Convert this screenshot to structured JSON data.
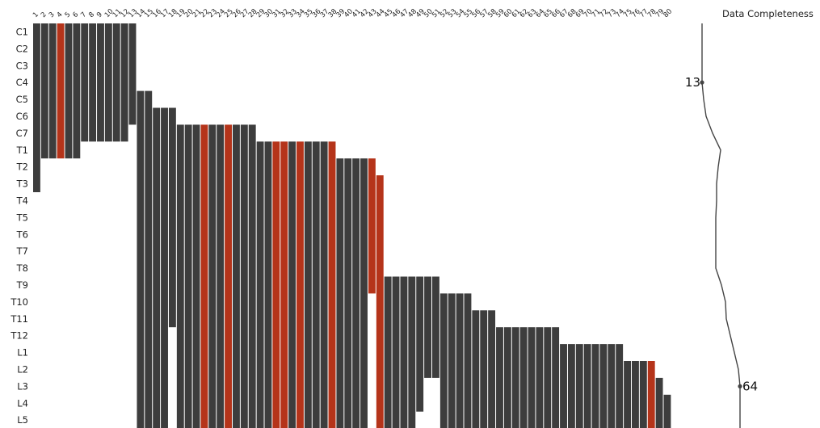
{
  "chart_data": {
    "type": "heatmap",
    "title": "",
    "rows": [
      "C1",
      "C2",
      "C3",
      "C4",
      "C5",
      "C6",
      "C7",
      "T1",
      "T2",
      "T3",
      "T4",
      "T5",
      "T6",
      "T7",
      "T8",
      "T9",
      "T10",
      "T11",
      "T12",
      "L1",
      "L2",
      "L3",
      "L4",
      "L5"
    ],
    "columns": [
      "1",
      "2",
      "3",
      "4",
      "5",
      "6",
      "7",
      "8",
      "9",
      "10",
      "11",
      "12",
      "13",
      "14",
      "15",
      "16",
      "17",
      "18",
      "19",
      "20",
      "21",
      "22",
      "23",
      "24",
      "25",
      "26",
      "27",
      "28",
      "29",
      "30",
      "31",
      "32",
      "33",
      "34",
      "35",
      "36",
      "37",
      "38",
      "39",
      "40",
      "41",
      "42",
      "43",
      "44",
      "45",
      "46",
      "47",
      "48",
      "49",
      "50",
      "51",
      "52",
      "53",
      "54",
      "55",
      "56",
      "57",
      "58",
      "59",
      "60",
      "61",
      "62",
      "63",
      "64",
      "65",
      "66",
      "67",
      "68",
      "69",
      "70",
      "71",
      "72",
      "73",
      "74",
      "75",
      "76",
      "77",
      "78",
      "79",
      "80"
    ],
    "spans": [
      [
        0,
        10
      ],
      [
        0,
        8
      ],
      [
        0,
        8
      ],
      [
        0,
        8
      ],
      [
        0,
        8
      ],
      [
        0,
        8
      ],
      [
        0,
        7
      ],
      [
        0,
        7
      ],
      [
        0,
        7
      ],
      [
        0,
        7
      ],
      [
        0,
        7
      ],
      [
        0,
        7
      ],
      [
        0,
        6
      ],
      [
        4,
        24
      ],
      [
        4,
        24
      ],
      [
        5,
        24
      ],
      [
        5,
        24
      ],
      [
        5,
        18
      ],
      [
        6,
        24
      ],
      [
        6,
        24
      ],
      [
        6,
        24
      ],
      [
        6,
        24
      ],
      [
        6,
        24
      ],
      [
        6,
        24
      ],
      [
        6,
        24
      ],
      [
        6,
        24
      ],
      [
        6,
        24
      ],
      [
        6,
        24
      ],
      [
        7,
        24
      ],
      [
        7,
        24
      ],
      [
        7,
        24
      ],
      [
        7,
        24
      ],
      [
        7,
        24
      ],
      [
        7,
        24
      ],
      [
        7,
        24
      ],
      [
        7,
        24
      ],
      [
        7,
        24
      ],
      [
        7,
        24
      ],
      [
        8,
        24
      ],
      [
        8,
        24
      ],
      [
        8,
        24
      ],
      [
        8,
        24
      ],
      [
        8,
        16
      ],
      [
        9,
        24
      ],
      [
        15,
        24
      ],
      [
        15,
        24
      ],
      [
        15,
        24
      ],
      [
        15,
        24
      ],
      [
        15,
        23
      ],
      [
        15,
        21
      ],
      [
        15,
        21
      ],
      [
        16,
        24
      ],
      [
        16,
        24
      ],
      [
        16,
        24
      ],
      [
        16,
        24
      ],
      [
        17,
        24
      ],
      [
        17,
        24
      ],
      [
        17,
        24
      ],
      [
        18,
        24
      ],
      [
        18,
        24
      ],
      [
        18,
        24
      ],
      [
        18,
        24
      ],
      [
        18,
        24
      ],
      [
        18,
        24
      ],
      [
        18,
        24
      ],
      [
        18,
        24
      ],
      [
        19,
        24
      ],
      [
        19,
        24
      ],
      [
        19,
        24
      ],
      [
        19,
        24
      ],
      [
        19,
        24
      ],
      [
        19,
        24
      ],
      [
        19,
        24
      ],
      [
        19,
        24
      ],
      [
        20,
        24
      ],
      [
        20,
        24
      ],
      [
        20,
        24
      ],
      [
        20,
        24
      ],
      [
        21,
        24
      ],
      [
        22,
        24
      ]
    ],
    "highlighted_columns": [
      "4",
      "22",
      "25",
      "31",
      "32",
      "34",
      "38",
      "43",
      "44",
      "78"
    ],
    "colors": {
      "missing": "#3d3d3d",
      "highlight": "#b5341a",
      "background": "#ffffff",
      "curve": "#444444"
    },
    "side_panel": {
      "label": "Data Completeness",
      "min_label": "13",
      "max_label": "64"
    }
  }
}
